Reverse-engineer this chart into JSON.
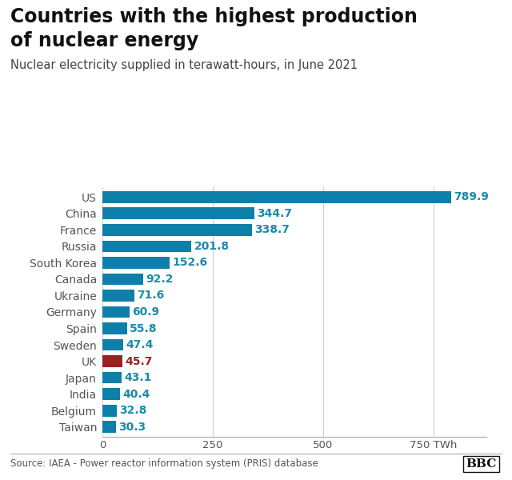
{
  "title_line1": "Countries with the highest production",
  "title_line2": "of nuclear energy",
  "subtitle": "Nuclear electricity supplied in terawatt-hours, in June 2021",
  "source": "Source: IAEA - Power reactor information system (PRIS) database",
  "categories": [
    "US",
    "China",
    "France",
    "Russia",
    "South Korea",
    "Canada",
    "Ukraine",
    "Germany",
    "Spain",
    "Sweden",
    "UK",
    "Japan",
    "India",
    "Belgium",
    "Taiwan"
  ],
  "values": [
    789.9,
    344.7,
    338.7,
    201.8,
    152.6,
    92.2,
    71.6,
    60.9,
    55.8,
    47.4,
    45.7,
    43.1,
    40.4,
    32.8,
    30.3
  ],
  "bar_colors": [
    "#0e7fa8",
    "#0e7fa8",
    "#0e7fa8",
    "#0e7fa8",
    "#0e7fa8",
    "#0e7fa8",
    "#0e7fa8",
    "#0e7fa8",
    "#0e7fa8",
    "#0e7fa8",
    "#9b2020",
    "#0e7fa8",
    "#0e7fa8",
    "#0e7fa8",
    "#0e7fa8"
  ],
  "highlight_index": 10,
  "label_color_normal": "#1a8aad",
  "label_color_highlight": "#9b2020",
  "xlim": [
    0,
    870
  ],
  "xticks": [
    0,
    250,
    500,
    750
  ],
  "xtick_labels": [
    "0",
    "250",
    "500",
    "750 TWh"
  ],
  "background_color": "#ffffff",
  "grid_color": "#cccccc",
  "title_fontsize": 17,
  "subtitle_fontsize": 10.5,
  "label_fontsize": 10,
  "tick_fontsize": 9.5,
  "bar_height": 0.72,
  "source_fontsize": 8.5,
  "bbc_fontsize": 11
}
